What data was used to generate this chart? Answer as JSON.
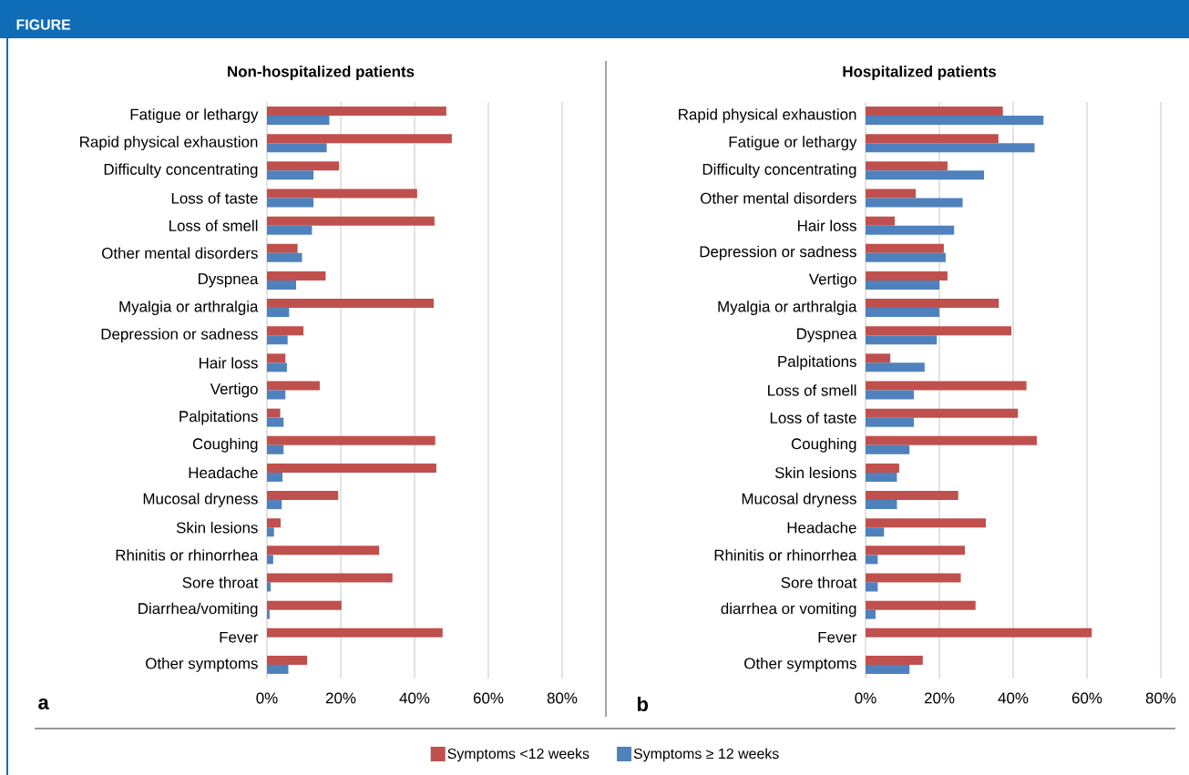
{
  "chart_data": [
    {
      "type": "bar",
      "orientation": "horizontal",
      "title": "Non-hospitalized patients",
      "annotations": [
        "FIGURE",
        "a"
      ],
      "categories": [
        "Fatigue or lethargy",
        "Rapid physical exhaustion",
        "Difficulty concentrating",
        "Loss of taste",
        "Loss of smell",
        "Other mental disorders",
        "Dyspnea",
        "Myalgia or arthralgia",
        "Depression or sadness",
        "Hair loss",
        "Vertigo",
        "Palpitations",
        "Coughing",
        "Headache",
        "Mucosal dryness",
        "Skin lesions",
        "Rhinitis or rhinorrhea",
        "Sore throat",
        "Diarrhea/vomiting",
        "Fever",
        "Other symptoms"
      ],
      "series": [
        {
          "name": "Symptoms <12 weeks",
          "color": "#c0504d",
          "values": [
            48.6,
            50.1,
            19.5,
            40.7,
            45.4,
            8.3,
            15.9,
            45.2,
            9.9,
            5.0,
            14.3,
            3.6,
            45.6,
            45.9,
            19.3,
            3.7,
            30.4,
            34.0,
            20.2,
            47.6,
            10.9
          ]
        },
        {
          "name": "Symptoms ≥ 12 weeks",
          "color": "#4f81bd",
          "values": [
            16.9,
            16.2,
            12.6,
            12.6,
            12.2,
            9.5,
            7.9,
            6.0,
            5.6,
            5.4,
            5.0,
            4.5,
            4.5,
            4.2,
            4.0,
            1.9,
            1.7,
            1.0,
            0.7,
            null,
            5.8
          ]
        }
      ],
      "xlim": [
        0,
        80
      ],
      "xticks": [
        {
          "value": 0,
          "label": "0%"
        },
        {
          "value": 20,
          "label": "20%"
        },
        {
          "value": 40,
          "label": "40%"
        },
        {
          "value": 60,
          "label": "60%"
        },
        {
          "value": 80,
          "label": "80%"
        }
      ],
      "grid": "x",
      "legend": "bottom"
    },
    {
      "type": "bar",
      "orientation": "horizontal",
      "title": "Hospitalized patients",
      "annotations": [
        "b"
      ],
      "categories": [
        "Rapid physical exhaustion",
        "Fatigue or lethargy",
        "Difficulty concentrating",
        "Other mental disorders",
        "Hair loss",
        "Depression or sadness",
        "Vertigo",
        "Myalgia or arthralgia",
        "Dyspnea",
        "Palpitations",
        "Loss of smell",
        "Loss of taste",
        "Coughing",
        "Skin lesions",
        "Mucosal dryness",
        "Headache",
        "Rhinitis or rhinorrhea",
        "Sore throat",
        "diarrhea or vomiting",
        "Fever",
        "Other symptoms"
      ],
      "series": [
        {
          "color": "#c0504d",
          "values": [
            37.2,
            36.0,
            22.2,
            13.6,
            7.9,
            21.2,
            22.2,
            36.1,
            39.5,
            6.7,
            43.6,
            41.3,
            46.4,
            9.1,
            25.1,
            32.6,
            26.9,
            25.8,
            29.8,
            61.3,
            15.5
          ]
        },
        {
          "color": "#4f81bd",
          "values": [
            48.2,
            45.8,
            32.1,
            26.3,
            24.0,
            21.7,
            20.0,
            20.0,
            19.3,
            16.0,
            13.1,
            13.1,
            11.9,
            8.5,
            8.5,
            5.0,
            3.3,
            3.3,
            2.7,
            null,
            11.9
          ]
        }
      ],
      "xlim": [
        0,
        80
      ],
      "xticks": [
        {
          "value": 0,
          "label": "0%"
        },
        {
          "value": 20,
          "label": "20%"
        },
        {
          "value": 40,
          "label": "40%"
        },
        {
          "value": 60,
          "label": "60%"
        },
        {
          "value": 80,
          "label": "80%"
        }
      ],
      "grid": "x"
    }
  ]
}
